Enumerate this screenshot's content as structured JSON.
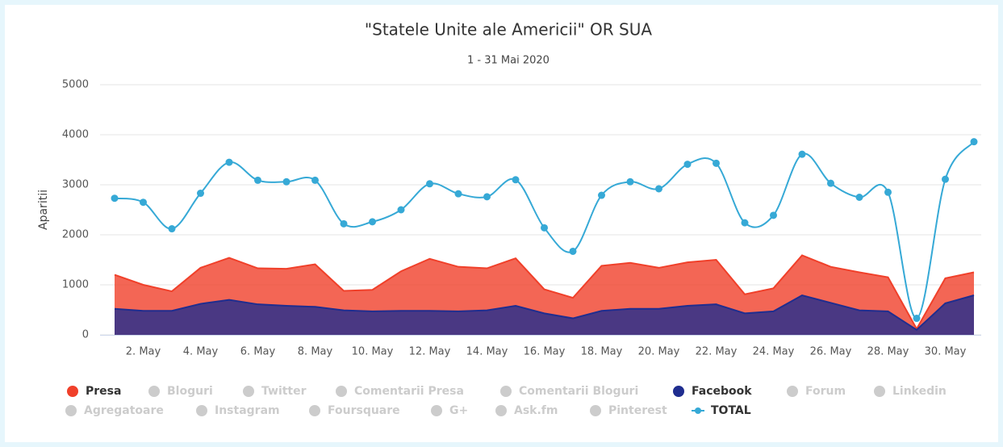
{
  "chart_data": {
    "type": "area",
    "title": "\"Statele Unite ale Americii\" OR SUA",
    "subtitle": "1 - 31 Mai 2020",
    "y_label": "Aparitii",
    "categories": [
      null,
      "2. May",
      null,
      "4. May",
      null,
      "6. May",
      null,
      "8. May",
      null,
      "10. May",
      null,
      "12. May",
      null,
      "14. May",
      null,
      "16. May",
      null,
      "18. May",
      null,
      "20. May",
      null,
      "22. May",
      null,
      "24. May",
      null,
      "26. May",
      null,
      "28. May",
      null,
      "30. May",
      null
    ],
    "ylim": [
      0,
      5000
    ],
    "yticks": [
      0,
      1000,
      2000,
      3000,
      4000,
      5000
    ],
    "grid": true,
    "series": [
      {
        "name": "Presa",
        "color": "#f0402a",
        "type": "area",
        "visible": true,
        "values": [
          1200,
          1000,
          870,
          1340,
          1540,
          1330,
          1320,
          1410,
          880,
          900,
          1270,
          1520,
          1360,
          1330,
          1530,
          910,
          740,
          1380,
          1440,
          1340,
          1450,
          1500,
          810,
          930,
          1590,
          1360,
          1250,
          1150,
          120,
          1130,
          1250
        ]
      },
      {
        "name": "Bloguri",
        "color": "#cccccc",
        "visible": false
      },
      {
        "name": "Twitter",
        "color": "#cccccc",
        "visible": false
      },
      {
        "name": "Comentarii Presa",
        "color": "#cccccc",
        "visible": false
      },
      {
        "name": "Comentarii Bloguri",
        "color": "#cccccc",
        "visible": false
      },
      {
        "name": "Facebook",
        "color": "#1f2d8f",
        "type": "area",
        "visible": true,
        "values": [
          520,
          480,
          480,
          620,
          700,
          610,
          580,
          560,
          490,
          470,
          480,
          480,
          470,
          490,
          580,
          430,
          330,
          480,
          520,
          520,
          580,
          610,
          430,
          470,
          790,
          640,
          490,
          470,
          100,
          630,
          790
        ]
      },
      {
        "name": "Forum",
        "color": "#cccccc",
        "visible": false
      },
      {
        "name": "Linkedin",
        "color": "#cccccc",
        "visible": false
      },
      {
        "name": "Agregatoare",
        "color": "#cccccc",
        "visible": false
      },
      {
        "name": "Instagram",
        "color": "#cccccc",
        "visible": false
      },
      {
        "name": "Foursquare",
        "color": "#cccccc",
        "visible": false
      },
      {
        "name": "G+",
        "color": "#cccccc",
        "visible": false
      },
      {
        "name": "Ask.fm",
        "color": "#cccccc",
        "visible": false
      },
      {
        "name": "Pinterest",
        "color": "#cccccc",
        "visible": false
      },
      {
        "name": "TOTAL",
        "color": "#36a9d6",
        "type": "spline",
        "visible": true,
        "values": [
          2730,
          2650,
          2120,
          2830,
          3450,
          3090,
          3060,
          3090,
          2220,
          2260,
          2500,
          3020,
          2820,
          2760,
          3100,
          2140,
          1670,
          2790,
          3060,
          2920,
          3410,
          3430,
          2240,
          2390,
          3610,
          3030,
          2750,
          2850,
          330,
          3110,
          3860
        ]
      }
    ]
  }
}
